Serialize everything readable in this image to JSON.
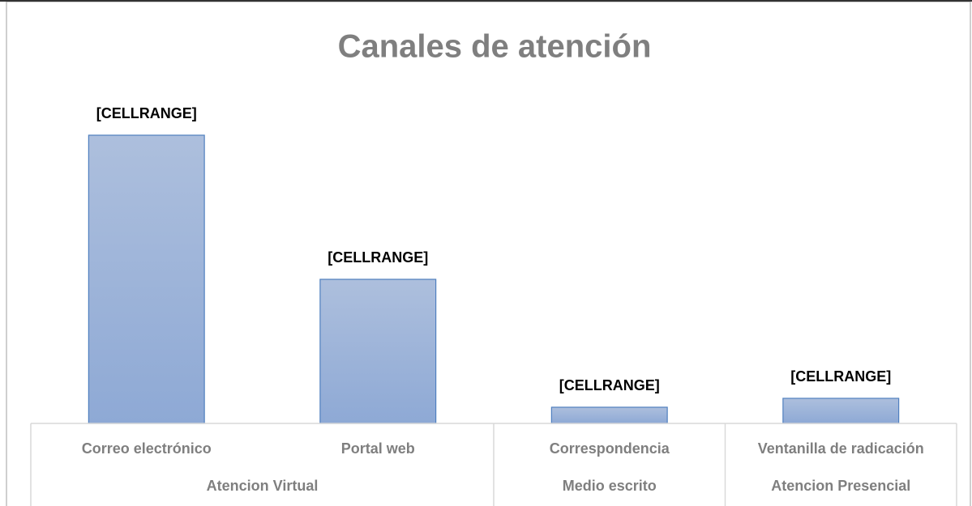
{
  "chart_data": {
    "type": "bar",
    "title": "Canales de atención",
    "groups": [
      {
        "name": "Atencion Virtual",
        "categories": [
          "Correo electrónico",
          "Portal web"
        ]
      },
      {
        "name": "Medio escrito",
        "categories": [
          "Correspondencia"
        ]
      },
      {
        "name": "Atencion Presencial",
        "categories": [
          "Ventanilla de radicación"
        ]
      }
    ],
    "values": [
      356,
      178,
      20,
      31
    ],
    "value_labels": [
      "[CELLRANGE]",
      "[CELLRANGE]",
      "[CELLRANGE]",
      "[CELLRANGE]"
    ],
    "color": "#95add6"
  }
}
